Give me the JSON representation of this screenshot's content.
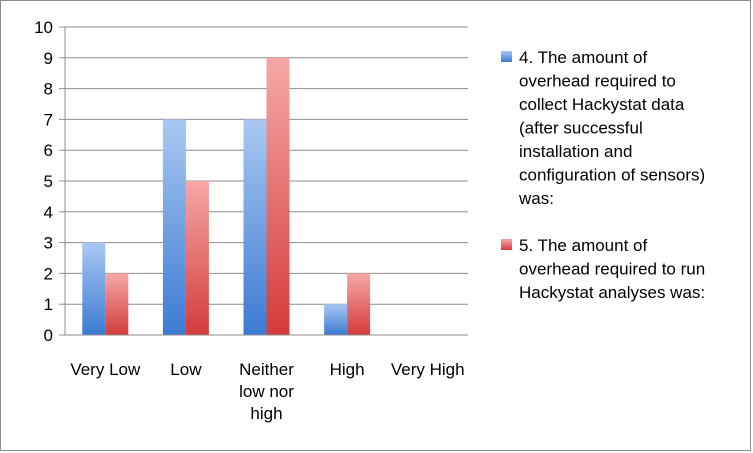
{
  "chart_data": {
    "type": "bar",
    "categories": [
      [
        "Very Low"
      ],
      [
        "Low"
      ],
      [
        "Neither",
        "low nor",
        "high"
      ],
      [
        "High"
      ],
      [
        "Very High"
      ]
    ],
    "series": [
      {
        "name": "4. The amount of overhead required to collect Hackystat data (after successful installation and configuration of sensors) was:",
        "values": [
          3,
          7,
          7,
          1,
          0
        ],
        "color": "#4a86d8"
      },
      {
        "name": "5. The amount of overhead required to run Hackystat analyses was:",
        "values": [
          2,
          5,
          9,
          2,
          0
        ],
        "color": "#d94a4a"
      }
    ],
    "ylim": [
      0,
      10
    ],
    "yticks": [
      "0",
      "1",
      "2",
      "3",
      "4",
      "5",
      "6",
      "7",
      "8",
      "9",
      "10"
    ],
    "grid": true,
    "legend_position": "right",
    "legend_lines": [
      [
        "4. The amount of",
        "overhead required to",
        "collect Hackystat data",
        "(after successful",
        "installation and",
        "configuration of sensors)",
        "was:"
      ],
      [
        "5. The amount of",
        "overhead required to run",
        "Hackystat analyses was:"
      ]
    ],
    "title": "",
    "xlabel": "",
    "ylabel": ""
  }
}
